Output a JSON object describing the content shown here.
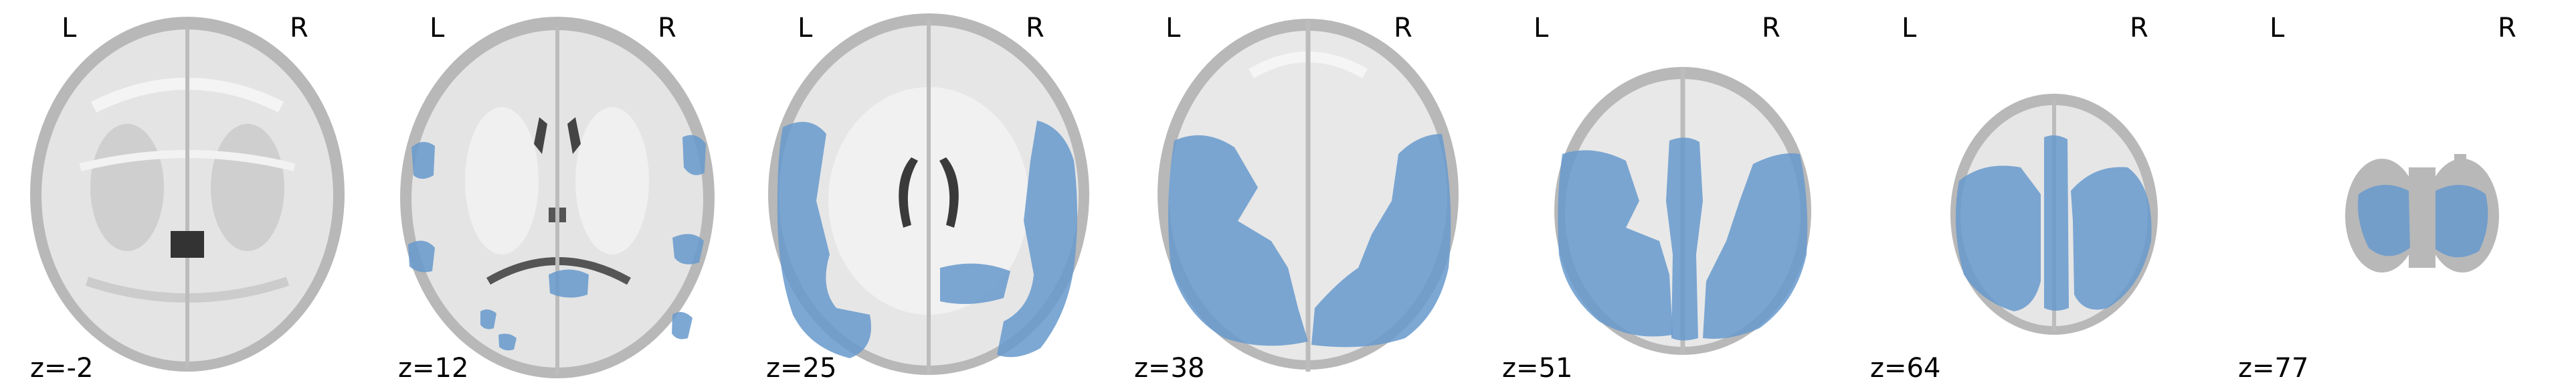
{
  "viewer": {
    "orientation_left": "L",
    "orientation_right": "R",
    "overlay_color": "#6699cc",
    "slices": [
      {
        "label": "z=-2"
      },
      {
        "label": "z=12"
      },
      {
        "label": "z=25"
      },
      {
        "label": "z=38"
      },
      {
        "label": "z=51"
      },
      {
        "label": "z=64"
      },
      {
        "label": "z=77"
      }
    ]
  }
}
